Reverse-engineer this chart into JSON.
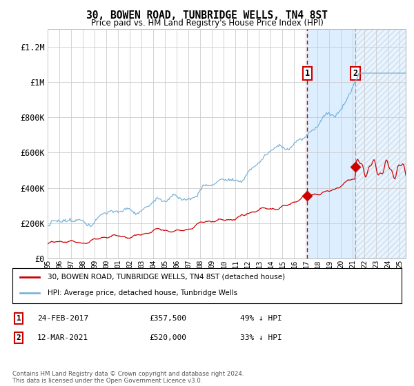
{
  "title": "30, BOWEN ROAD, TUNBRIDGE WELLS, TN4 8ST",
  "subtitle": "Price paid vs. HM Land Registry's House Price Index (HPI)",
  "hpi_label": "HPI: Average price, detached house, Tunbridge Wells",
  "price_label": "30, BOWEN ROAD, TUNBRIDGE WELLS, TN4 8ST (detached house)",
  "footer": "Contains HM Land Registry data © Crown copyright and database right 2024.\nThis data is licensed under the Open Government Licence v3.0.",
  "transaction1_date": "24-FEB-2017",
  "transaction1_price": "£357,500",
  "transaction1_pct": "49% ↓ HPI",
  "transaction1_x": 2017.12,
  "transaction1_y": 357500,
  "transaction2_date": "12-MAR-2021",
  "transaction2_price": "£520,000",
  "transaction2_pct": "33% ↓ HPI",
  "transaction2_x": 2021.21,
  "transaction2_y": 520000,
  "xlim_low": 1995,
  "xlim_high": 2025.5,
  "ylim_low": 0,
  "ylim_high": 1300000,
  "hpi_color": "#7ab4d8",
  "price_color": "#cc0000",
  "bg_color": "#ffffff",
  "shaded_color": "#ddeeff",
  "grid_color": "#cccccc",
  "yticks": [
    0,
    200000,
    400000,
    600000,
    800000,
    1000000,
    1200000
  ],
  "ytick_labels": [
    "£0",
    "£200K",
    "£400K",
    "£600K",
    "£800K",
    "£1M",
    "£1.2M"
  ],
  "xticks": [
    1995,
    1996,
    1997,
    1998,
    1999,
    2000,
    2001,
    2002,
    2003,
    2004,
    2005,
    2006,
    2007,
    2008,
    2009,
    2010,
    2011,
    2012,
    2013,
    2014,
    2015,
    2016,
    2017,
    2018,
    2019,
    2020,
    2021,
    2022,
    2023,
    2024,
    2025
  ]
}
